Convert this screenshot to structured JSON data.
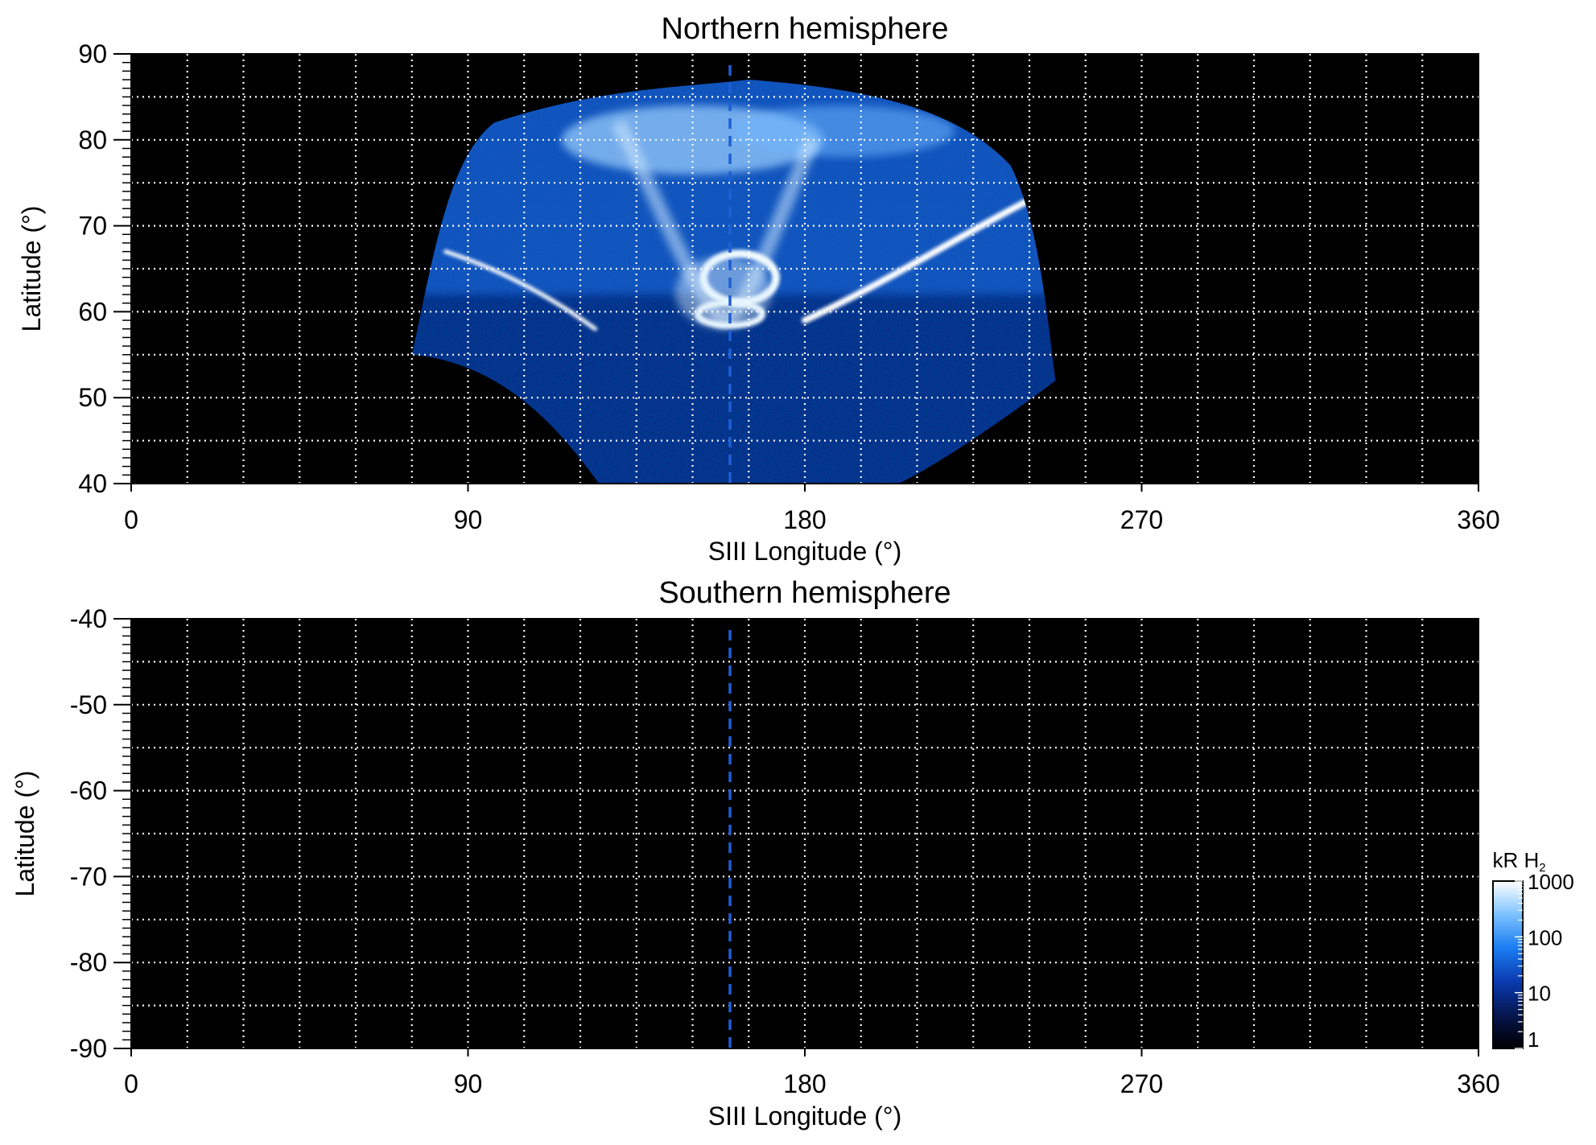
{
  "chart_data": [
    {
      "type": "heatmap",
      "title": "Northern hemisphere",
      "xlabel": "SIII Longitude (°)",
      "ylabel": "Latitude (°)",
      "xlim": [
        0,
        360
      ],
      "ylim": [
        40,
        90
      ],
      "x_ticks": [
        0,
        90,
        180,
        270,
        360
      ],
      "x_tick_labels": [
        "0",
        "90",
        "180",
        "270",
        "360"
      ],
      "y_ticks": [
        40,
        50,
        60,
        70,
        80,
        90
      ],
      "y_tick_labels": [
        "40",
        "50",
        "60",
        "70",
        "80",
        "90"
      ],
      "grid": true,
      "grid_style": "dotted white, every 15° longitude and 5° latitude",
      "background_color": "#000000",
      "reference_line": {
        "longitude": 160,
        "style": "dashed",
        "color": "#1f5fd6"
      },
      "emission_region": {
        "lon_range": [
          75,
          245
        ],
        "lat_range": [
          40,
          87
        ],
        "features": [
          {
            "name": "main auroral oval, western arc",
            "path": [
              [
                84,
                67
              ],
              [
                105,
                64
              ],
              [
                124,
                58
              ]
            ]
          },
          {
            "name": "main auroral oval, eastern arc",
            "path": [
              [
                180,
                59
              ],
              [
                200,
                63
              ],
              [
                222,
                69
              ],
              [
                240,
                73
              ]
            ]
          },
          {
            "name": "bright swirl near reference line",
            "center": [
              160,
              63
            ]
          }
        ]
      }
    },
    {
      "type": "heatmap",
      "title": "Southern hemisphere",
      "xlabel": "SIII Longitude (°)",
      "ylabel": "Latitude (°)",
      "xlim": [
        0,
        360
      ],
      "ylim": [
        -90,
        -40
      ],
      "x_ticks": [
        0,
        90,
        180,
        270,
        360
      ],
      "x_tick_labels": [
        "0",
        "90",
        "180",
        "270",
        "360"
      ],
      "y_ticks": [
        -40,
        -50,
        -60,
        -70,
        -80,
        -90
      ],
      "y_tick_labels": [
        "-40",
        "-50",
        "-60",
        "-70",
        "-80",
        "-90"
      ],
      "grid": true,
      "grid_style": "dotted white, every 15° longitude and 5° latitude",
      "background_color": "#000000",
      "reference_line": {
        "longitude": 160,
        "style": "dashed",
        "color": "#1f5fd6"
      },
      "emission_region": null
    }
  ],
  "colorbar": {
    "label_main": "kR H",
    "label_sub": "2",
    "scale": "log",
    "range": [
      1,
      1000
    ],
    "ticks": [
      1,
      10,
      100,
      1000
    ],
    "tick_labels": [
      "1",
      "10",
      "100",
      "1000"
    ],
    "colors": [
      "#000000",
      "#06164f",
      "#0a3bb0",
      "#1b7cf2",
      "#7cc2ff",
      "#ffffff"
    ]
  }
}
